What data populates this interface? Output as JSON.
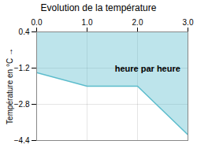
{
  "chart_data": {
    "type": "line",
    "title": "Evolution de la température",
    "ylabel": "Température en °C",
    "annotations": [
      {
        "text": "heure par heure",
        "x": 1.55,
        "y": -1.1
      }
    ],
    "x": [
      0,
      1,
      2,
      3
    ],
    "values": [
      -1.4,
      -2.0,
      -2.0,
      -4.15
    ],
    "color": "#5bbccc",
    "xlim": [
      0,
      3
    ],
    "ylim": [
      -4.4,
      0.4
    ],
    "xticks": [
      0,
      1,
      2,
      3
    ],
    "yticks": [
      0.4,
      -1.2,
      -2.8,
      -4.4
    ],
    "grid": true
  }
}
